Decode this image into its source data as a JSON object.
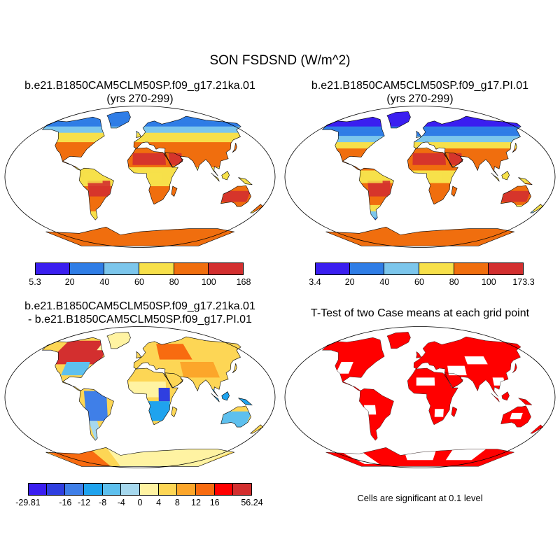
{
  "title": "SON FSDSND (W/m^2)",
  "panels": {
    "case1": {
      "title_line1": "b.e21.B1850CAM5CLM50SP.f09_g17.21ka.01",
      "title_line2": "(yrs 270-299)"
    },
    "case2": {
      "title_line1": "b.e21.B1850CAM5CLM50SP.f09_g17.PI.01",
      "title_line2": "(yrs 270-299)"
    },
    "diff": {
      "title_line1": "b.e21.B1850CAM5CLM50SP.f09_g17.21ka.01",
      "title_line2": "- b.e21.B1850CAM5CLM50SP.f09_g17.PI.01"
    },
    "ttest": {
      "title": "T-Test of two Case means at each grid point",
      "note": "Cells are significant at 0.1 level"
    }
  },
  "colorbars": {
    "case1": {
      "colors": [
        "#3a1ef0",
        "#2f7de6",
        "#7cc6ec",
        "#f7e04a",
        "#f06e0e",
        "#d32f2f"
      ],
      "labels": [
        "5.3",
        "20",
        "40",
        "60",
        "80",
        "100",
        "168"
      ]
    },
    "case2": {
      "colors": [
        "#3a1ef0",
        "#2f7de6",
        "#7cc6ec",
        "#f7e04a",
        "#f06e0e",
        "#d32f2f"
      ],
      "labels": [
        "3.4",
        "20",
        "40",
        "60",
        "80",
        "100",
        "173.3"
      ]
    },
    "diff": {
      "colors": [
        "#3a1ef0",
        "#2f3fe0",
        "#3f7fe8",
        "#1fa3ee",
        "#5ec0ee",
        "#a6d8ee",
        "#fff3a2",
        "#fdd655",
        "#fca62a",
        "#f86b10",
        "#ff0000",
        "#d32f2f"
      ],
      "labels": [
        "-29.81",
        "-16",
        "-12",
        "-8",
        "-4",
        "0",
        "4",
        "8",
        "12",
        "16",
        "56.24"
      ]
    }
  },
  "colors": {
    "significant": "#ff0000",
    "land_outline": "#000000"
  }
}
